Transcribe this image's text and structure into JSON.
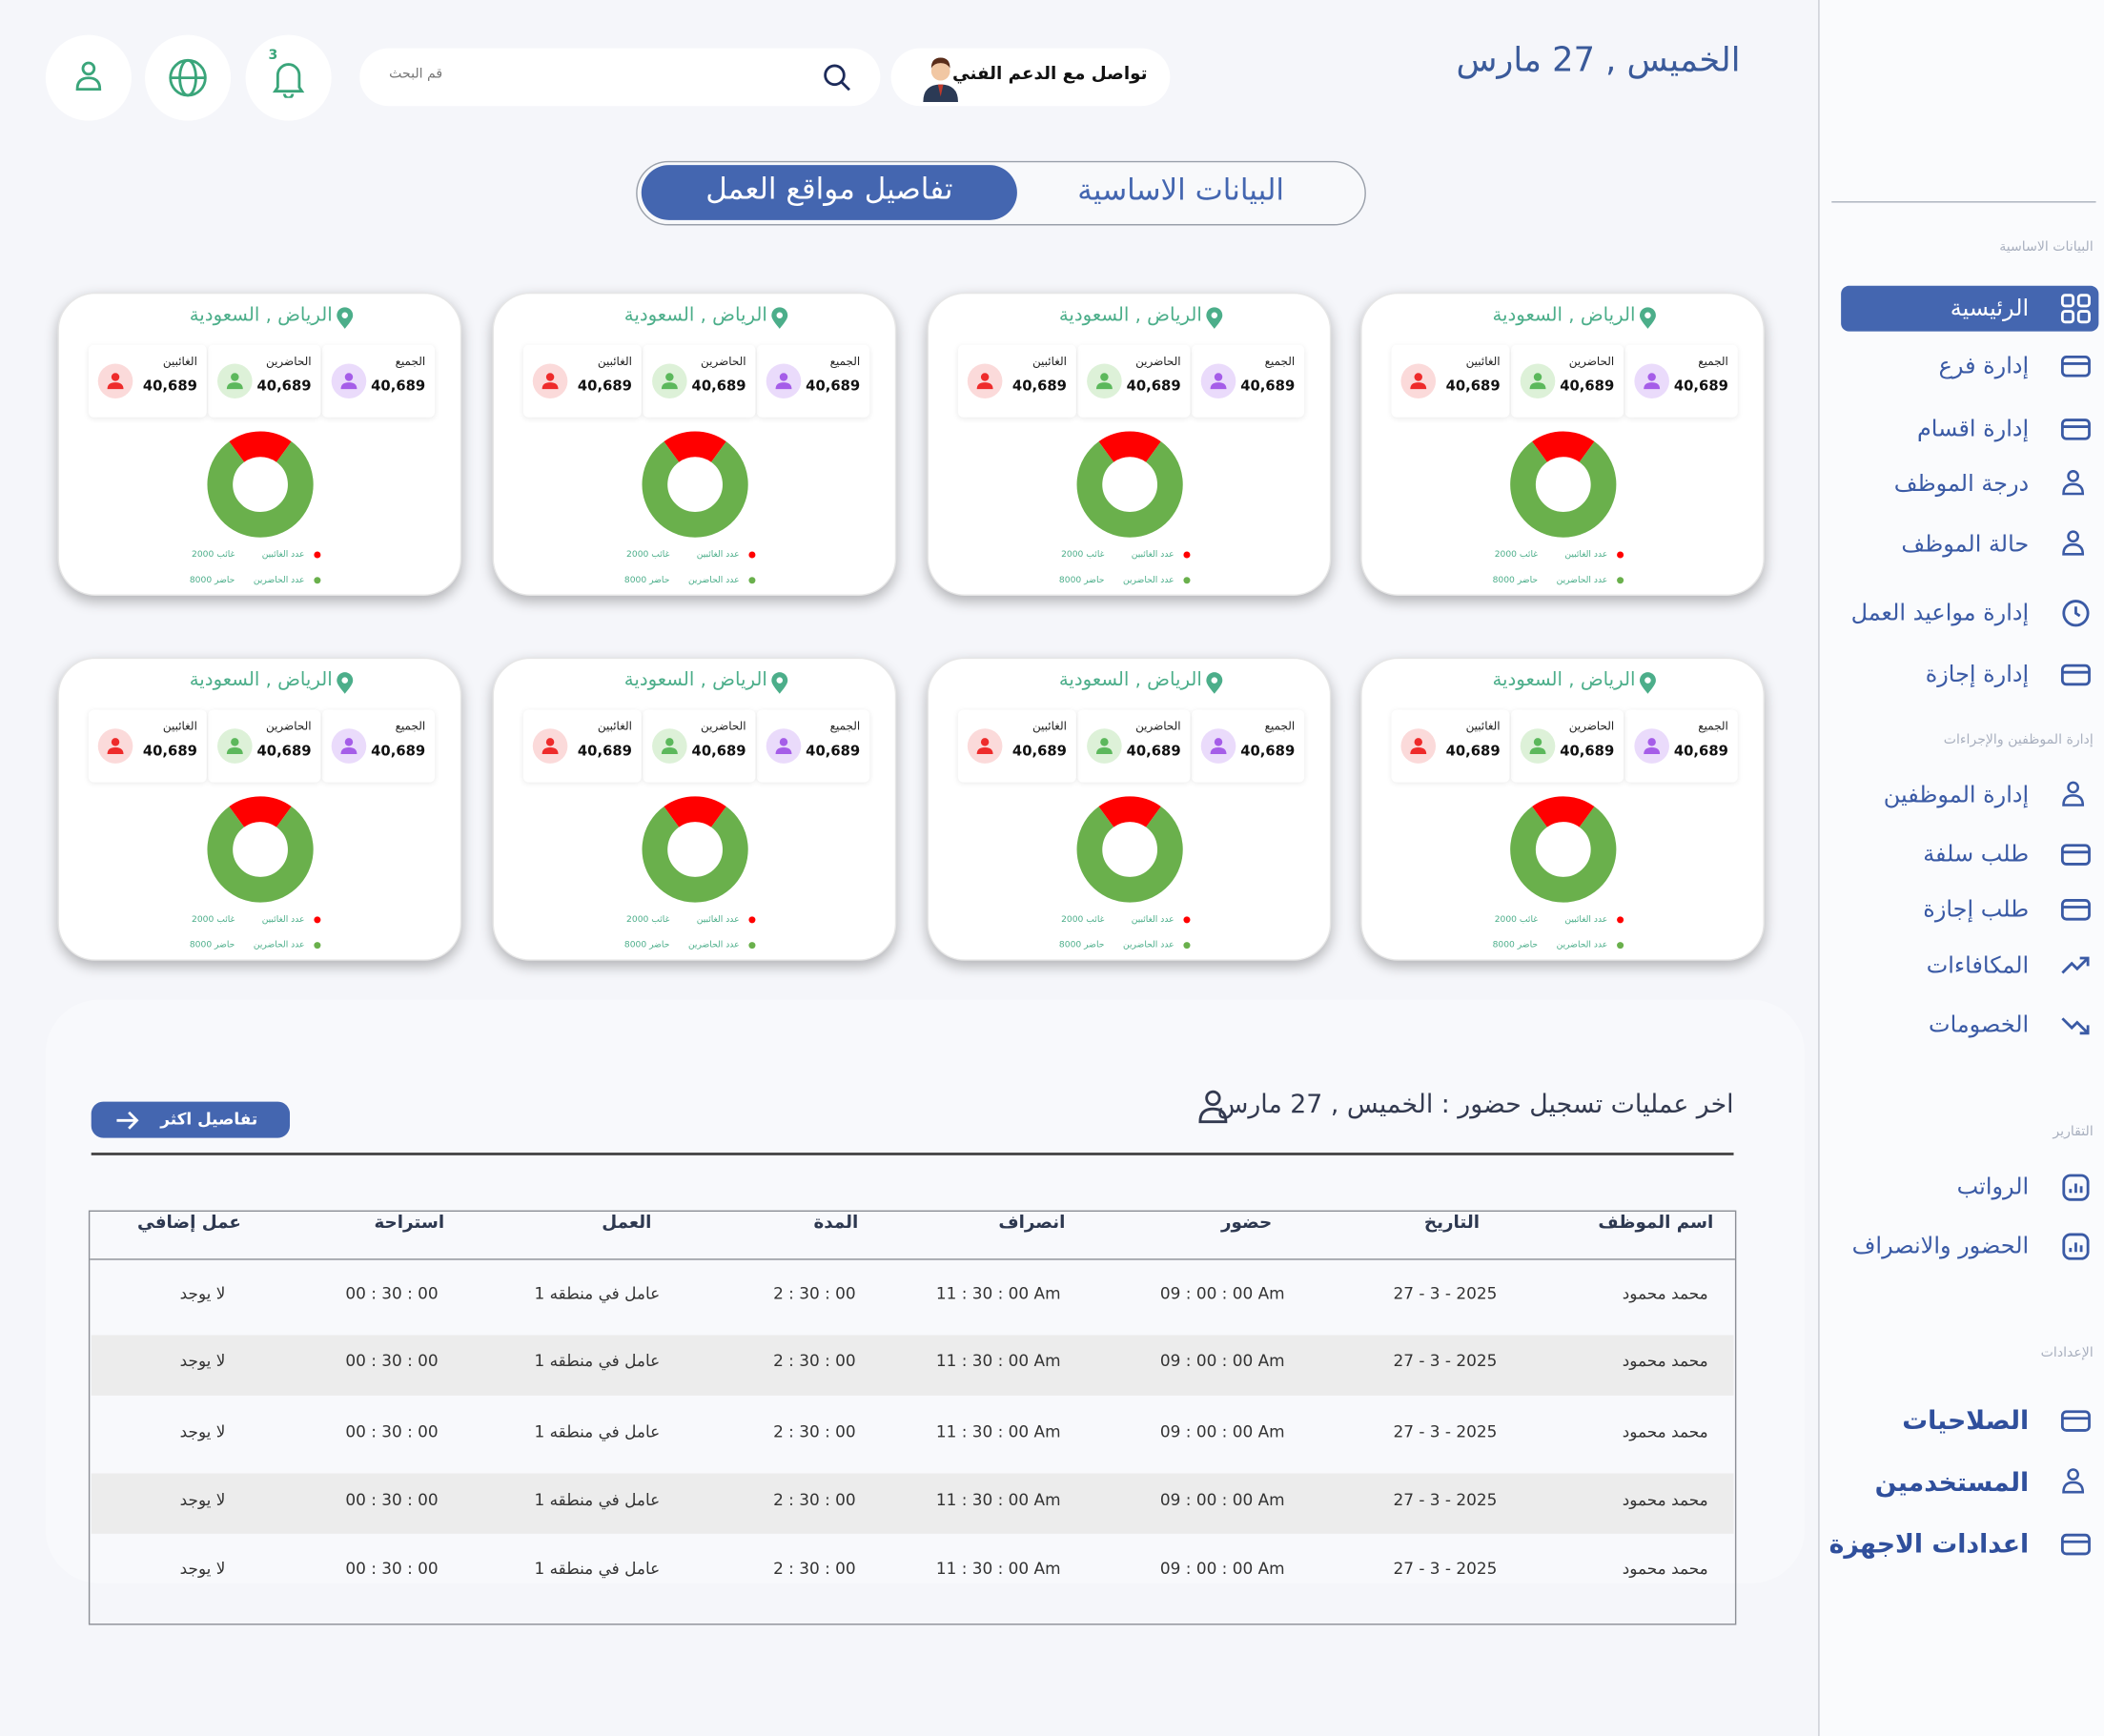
{
  "header": {
    "date": "الخميس , 27 مارس",
    "support": "تواصل مع الدعم الفني",
    "search_placeholder": "قم البحث",
    "notifications": "3"
  },
  "tabs": [
    "البيانات الاساسية",
    "تفاصيل مواقع العمل"
  ],
  "sidebar": [
    {
      "heading": "البيانات الاساسية",
      "items": [
        "الرئيسية",
        "إدارة فرع",
        "إدارة اقسام",
        "درجة الموظف",
        "حالة الموظف",
        "إدارة مواعيد العمل",
        "إدارة إجازة"
      ]
    },
    {
      "heading": "إدارة الموظفين والإجراءات",
      "items": [
        "إدارة الموظفين",
        "طلب سلفة",
        "طلب إجازة",
        "المكافاءات",
        "الخصومات"
      ]
    },
    {
      "heading": "التقارير",
      "items": [
        "الرواتب",
        "الحضور والانصراف"
      ]
    },
    {
      "heading": "الإعدادات",
      "items": [
        "الصلاحيات",
        "المستخدمين",
        "اعدادات الاجهزة"
      ]
    }
  ],
  "cards": [
    {
      "location": "الرياض , السعودية",
      "stats": [
        {
          "label": "الجميع",
          "value": "40,689"
        },
        {
          "label": "الحاضرين",
          "value": "40,689"
        },
        {
          "label": "الغائبين",
          "value": "40,689"
        }
      ],
      "legend": [
        {
          "label": "عدد الغائبين",
          "value": 2000,
          "value_label": "2000 غائب",
          "color": "#ff0000"
        },
        {
          "label": "عدد الحاضرين",
          "value": 8000,
          "value_label": "8000 حاضر",
          "color": "#6ab04c"
        }
      ]
    },
    {
      "location": "الرياض , السعودية",
      "stats": [
        {
          "label": "الجميع",
          "value": "40,689"
        },
        {
          "label": "الحاضرين",
          "value": "40,689"
        },
        {
          "label": "الغائبين",
          "value": "40,689"
        }
      ],
      "legend": [
        {
          "label": "عدد الغائبين",
          "value": 2000,
          "value_label": "2000 غائب",
          "color": "#ff0000"
        },
        {
          "label": "عدد الحاضرين",
          "value": 8000,
          "value_label": "8000 حاضر",
          "color": "#6ab04c"
        }
      ]
    },
    {
      "location": "الرياض , السعودية",
      "stats": [
        {
          "label": "الجميع",
          "value": "40,689"
        },
        {
          "label": "الحاضرين",
          "value": "40,689"
        },
        {
          "label": "الغائبين",
          "value": "40,689"
        }
      ],
      "legend": [
        {
          "label": "عدد الغائبين",
          "value": 2000,
          "value_label": "2000 غائب",
          "color": "#ff0000"
        },
        {
          "label": "عدد الحاضرين",
          "value": 8000,
          "value_label": "8000 حاضر",
          "color": "#6ab04c"
        }
      ]
    },
    {
      "location": "الرياض , السعودية",
      "stats": [
        {
          "label": "الجميع",
          "value": "40,689"
        },
        {
          "label": "الحاضرين",
          "value": "40,689"
        },
        {
          "label": "الغائبين",
          "value": "40,689"
        }
      ],
      "legend": [
        {
          "label": "عدد الغائبين",
          "value": 2000,
          "value_label": "2000 غائب",
          "color": "#ff0000"
        },
        {
          "label": "عدد الحاضرين",
          "value": 8000,
          "value_label": "8000 حاضر",
          "color": "#6ab04c"
        }
      ]
    },
    {
      "location": "الرياض , السعودية",
      "stats": [
        {
          "label": "الجميع",
          "value": "40,689"
        },
        {
          "label": "الحاضرين",
          "value": "40,689"
        },
        {
          "label": "الغائبين",
          "value": "40,689"
        }
      ],
      "legend": [
        {
          "label": "عدد الغائبين",
          "value": 2000,
          "value_label": "2000 غائب",
          "color": "#ff0000"
        },
        {
          "label": "عدد الحاضرين",
          "value": 8000,
          "value_label": "8000 حاضر",
          "color": "#6ab04c"
        }
      ]
    },
    {
      "location": "الرياض , السعودية",
      "stats": [
        {
          "label": "الجميع",
          "value": "40,689"
        },
        {
          "label": "الحاضرين",
          "value": "40,689"
        },
        {
          "label": "الغائبين",
          "value": "40,689"
        }
      ],
      "legend": [
        {
          "label": "عدد الغائبين",
          "value": 2000,
          "value_label": "2000 غائب",
          "color": "#ff0000"
        },
        {
          "label": "عدد الحاضرين",
          "value": 8000,
          "value_label": "8000 حاضر",
          "color": "#6ab04c"
        }
      ]
    },
    {
      "location": "الرياض , السعودية",
      "stats": [
        {
          "label": "الجميع",
          "value": "40,689"
        },
        {
          "label": "الحاضرين",
          "value": "40,689"
        },
        {
          "label": "الغائبين",
          "value": "40,689"
        }
      ],
      "legend": [
        {
          "label": "عدد الغائبين",
          "value": 2000,
          "value_label": "2000 غائب",
          "color": "#ff0000"
        },
        {
          "label": "عدد الحاضرين",
          "value": 8000,
          "value_label": "8000 حاضر",
          "color": "#6ab04c"
        }
      ]
    },
    {
      "location": "الرياض , السعودية",
      "stats": [
        {
          "label": "الجميع",
          "value": "40,689"
        },
        {
          "label": "الحاضرين",
          "value": "40,689"
        },
        {
          "label": "الغائبين",
          "value": "40,689"
        }
      ],
      "legend": [
        {
          "label": "عدد الغائبين",
          "value": 2000,
          "value_label": "2000 غائب",
          "color": "#ff0000"
        },
        {
          "label": "عدد الحاضرين",
          "value": 8000,
          "value_label": "8000 حاضر",
          "color": "#6ab04c"
        }
      ]
    }
  ],
  "attendance": {
    "title": "اخر عمليات تسجيل حضور : الخميس , 27 مارس",
    "button": "تفاصيل اكثر",
    "table": {
      "headers": [
        "اسم الموظف",
        "التاريخ",
        "حضور",
        "انصراف",
        "المدة",
        "العمل",
        "استراحة",
        "عمل إضافي"
      ],
      "rows": [
        [
          "محمد محمود",
          "27 - 3 - 2025",
          "09 : 00 : 00 Am",
          "11 : 30 : 00 Am",
          "2 : 30 : 00",
          "عامل في منطقه 1",
          "00 : 30 : 00",
          "لا يوجد"
        ],
        [
          "محمد محمود",
          "27 - 3 - 2025",
          "09 : 00 : 00 Am",
          "11 : 30 : 00 Am",
          "2 : 30 : 00",
          "عامل في منطقه 1",
          "00 : 30 : 00",
          "لا يوجد"
        ],
        [
          "محمد محمود",
          "27 - 3 - 2025",
          "09 : 00 : 00 Am",
          "11 : 30 : 00 Am",
          "2 : 30 : 00",
          "عامل في منطقه 1",
          "00 : 30 : 00",
          "لا يوجد"
        ],
        [
          "محمد محمود",
          "27 - 3 - 2025",
          "09 : 00 : 00 Am",
          "11 : 30 : 00 Am",
          "2 : 30 : 00",
          "عامل في منطقه 1",
          "00 : 30 : 00",
          "لا يوجد"
        ],
        [
          "محمد محمود",
          "27 - 3 - 2025",
          "09 : 00 : 00 Am",
          "11 : 30 : 00 Am",
          "2 : 30 : 00",
          "عامل في منطقه 1",
          "00 : 30 : 00",
          "لا يوجد"
        ]
      ]
    }
  }
}
